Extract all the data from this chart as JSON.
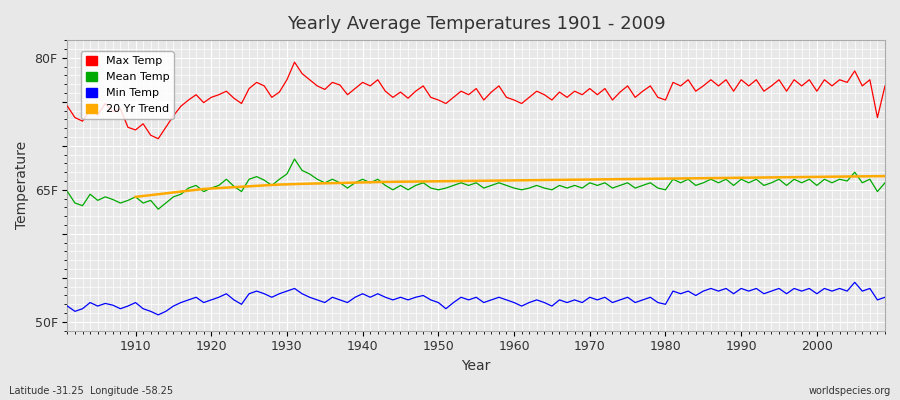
{
  "title": "Yearly Average Temperatures 1901 - 2009",
  "xlabel": "Year",
  "ylabel": "Temperature",
  "years_start": 1901,
  "years_end": 2009,
  "yticks": [
    50,
    55,
    60,
    65,
    70,
    75,
    80
  ],
  "ytick_labels": [
    "50F",
    "",
    "",
    "65F",
    "",
    "",
    "80F"
  ],
  "ylim": [
    49,
    82
  ],
  "xlim": [
    1901,
    2009
  ],
  "bg_color": "#e8e8e8",
  "grid_color": "#ffffff",
  "lat": -31.25,
  "lon": -58.25,
  "legend_labels": [
    "Max Temp",
    "Mean Temp",
    "Min Temp",
    "20 Yr Trend"
  ],
  "legend_colors": [
    "#ff0000",
    "#00aa00",
    "#0000ff",
    "#ffaa00"
  ],
  "max_temps": [
    74.5,
    73.2,
    72.8,
    74.1,
    73.5,
    74.8,
    73.9,
    74.2,
    72.1,
    71.8,
    72.5,
    71.2,
    70.8,
    72.1,
    73.4,
    74.5,
    75.2,
    75.8,
    74.9,
    75.5,
    75.8,
    76.2,
    75.4,
    74.8,
    76.5,
    77.2,
    76.8,
    75.5,
    76.1,
    77.5,
    79.5,
    78.2,
    77.5,
    76.8,
    76.4,
    77.2,
    76.9,
    75.8,
    76.5,
    77.2,
    76.8,
    77.5,
    76.2,
    75.5,
    76.1,
    75.4,
    76.2,
    76.8,
    75.5,
    75.2,
    74.8,
    75.5,
    76.2,
    75.8,
    76.5,
    75.2,
    76.1,
    76.8,
    75.5,
    75.2,
    74.8,
    75.5,
    76.2,
    75.8,
    75.2,
    76.1,
    75.5,
    76.2,
    75.8,
    76.5,
    75.8,
    76.5,
    75.2,
    76.1,
    76.8,
    75.5,
    76.2,
    76.8,
    75.5,
    75.2,
    77.2,
    76.8,
    77.5,
    76.2,
    76.8,
    77.5,
    76.8,
    77.5,
    76.2,
    77.5,
    76.8,
    77.5,
    76.2,
    76.8,
    77.5,
    76.2,
    77.5,
    76.8,
    77.5,
    76.2,
    77.5,
    76.8,
    77.5,
    77.2,
    78.5,
    76.8,
    77.5,
    73.2,
    76.8
  ],
  "mean_temps": [
    64.8,
    63.5,
    63.2,
    64.5,
    63.8,
    64.2,
    63.9,
    63.5,
    63.8,
    64.2,
    63.5,
    63.8,
    62.8,
    63.5,
    64.2,
    64.5,
    65.2,
    65.5,
    64.8,
    65.2,
    65.5,
    66.2,
    65.4,
    64.8,
    66.2,
    66.5,
    66.1,
    65.5,
    66.2,
    66.8,
    68.5,
    67.2,
    66.8,
    66.2,
    65.8,
    66.2,
    65.8,
    65.2,
    65.8,
    66.2,
    65.8,
    66.2,
    65.5,
    65.0,
    65.5,
    65.0,
    65.5,
    65.8,
    65.2,
    65.0,
    65.2,
    65.5,
    65.8,
    65.5,
    65.8,
    65.2,
    65.5,
    65.8,
    65.5,
    65.2,
    65.0,
    65.2,
    65.5,
    65.2,
    65.0,
    65.5,
    65.2,
    65.5,
    65.2,
    65.8,
    65.5,
    65.8,
    65.2,
    65.5,
    65.8,
    65.2,
    65.5,
    65.8,
    65.2,
    65.0,
    66.2,
    65.8,
    66.2,
    65.5,
    65.8,
    66.2,
    65.8,
    66.2,
    65.5,
    66.2,
    65.8,
    66.2,
    65.5,
    65.8,
    66.2,
    65.5,
    66.2,
    65.8,
    66.2,
    65.5,
    66.2,
    65.8,
    66.2,
    66.0,
    67.0,
    65.8,
    66.2,
    64.8,
    65.8
  ],
  "min_temps": [
    51.8,
    51.2,
    51.5,
    52.2,
    51.8,
    52.1,
    51.9,
    51.5,
    51.8,
    52.2,
    51.5,
    51.2,
    50.8,
    51.2,
    51.8,
    52.2,
    52.5,
    52.8,
    52.2,
    52.5,
    52.8,
    53.2,
    52.5,
    52.0,
    53.2,
    53.5,
    53.2,
    52.8,
    53.2,
    53.5,
    53.8,
    53.2,
    52.8,
    52.5,
    52.2,
    52.8,
    52.5,
    52.2,
    52.8,
    53.2,
    52.8,
    53.2,
    52.8,
    52.5,
    52.8,
    52.5,
    52.8,
    53.0,
    52.5,
    52.2,
    51.5,
    52.2,
    52.8,
    52.5,
    52.8,
    52.2,
    52.5,
    52.8,
    52.5,
    52.2,
    51.8,
    52.2,
    52.5,
    52.2,
    51.8,
    52.5,
    52.2,
    52.5,
    52.2,
    52.8,
    52.5,
    52.8,
    52.2,
    52.5,
    52.8,
    52.2,
    52.5,
    52.8,
    52.2,
    52.0,
    53.5,
    53.2,
    53.5,
    53.0,
    53.5,
    53.8,
    53.5,
    53.8,
    53.2,
    53.8,
    53.5,
    53.8,
    53.2,
    53.5,
    53.8,
    53.2,
    53.8,
    53.5,
    53.8,
    53.2,
    53.8,
    53.5,
    53.8,
    53.5,
    54.5,
    53.5,
    53.8,
    52.5,
    52.8
  ],
  "trend_start_year": 1910,
  "trend_values": [
    64.2,
    64.3,
    64.4,
    64.5,
    64.6,
    64.7,
    64.8,
    64.9,
    65.0,
    65.1,
    65.15,
    65.2,
    65.25,
    65.3,
    65.35,
    65.4,
    65.45,
    65.5,
    65.55,
    65.6,
    65.62,
    65.65,
    65.68,
    65.7,
    65.72,
    65.74,
    65.76,
    65.78,
    65.8,
    65.82,
    65.84,
    65.86,
    65.88,
    65.9,
    65.91,
    65.92,
    65.93,
    65.94,
    65.95,
    65.96,
    65.97,
    65.98,
    65.99,
    66.0,
    66.01,
    66.02,
    66.03,
    66.04,
    66.05,
    66.06,
    66.07,
    66.08,
    66.09,
    66.1,
    66.11,
    66.12,
    66.13,
    66.14,
    66.15,
    66.16,
    66.17,
    66.18,
    66.19,
    66.2,
    66.21,
    66.22,
    66.23,
    66.24,
    66.25,
    66.26,
    66.27,
    66.28,
    66.29,
    66.3,
    66.31,
    66.32,
    66.33,
    66.34,
    66.35,
    66.36,
    66.37,
    66.38,
    66.39,
    66.4,
    66.41,
    66.42,
    66.43,
    66.44,
    66.45,
    66.46,
    66.47,
    66.48,
    66.49,
    66.5,
    66.51,
    66.52,
    66.53,
    66.54,
    66.55,
    66.56
  ]
}
